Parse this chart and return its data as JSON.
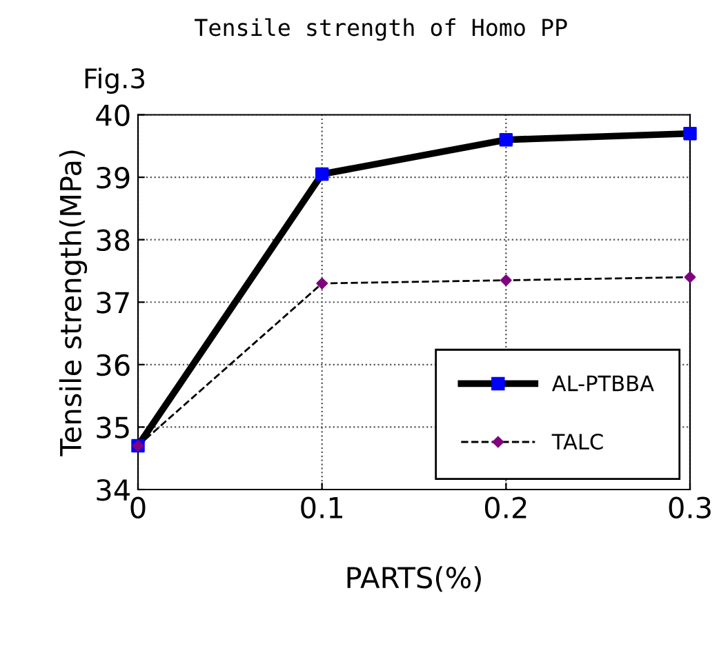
{
  "chart_data": {
    "type": "line",
    "title": "Tensile strength of Homo PP",
    "xlabel": "PARTS(%)",
    "ylabel": "Tensile strength(MPa)",
    "annotations": [
      "Fig.3"
    ],
    "x": [
      0,
      0.1,
      0.2,
      0.3
    ],
    "series": [
      {
        "name": "AL-PTBBA",
        "color": "#000000",
        "marker": "square",
        "colors": [
          "#0000ff",
          "#0000ff",
          "#0000ff",
          "#0000ff"
        ],
        "line_style": "solid",
        "values": [
          34.7,
          39.05,
          39.6,
          39.7
        ]
      },
      {
        "name": "TALC",
        "color": "#000000",
        "marker": "diamond",
        "colors": [
          "#800080",
          "#800080",
          "#800080",
          "#800080"
        ],
        "line_style": "dashed",
        "values": [
          34.7,
          37.3,
          37.35,
          37.4
        ]
      }
    ],
    "xlim": [
      0,
      0.3
    ],
    "xticks": [
      0,
      0.1,
      0.2,
      0.3
    ],
    "ylim": [
      34,
      40
    ],
    "yticks": [
      34,
      35,
      36,
      37,
      38,
      39,
      40
    ],
    "grid": true,
    "legend": "bottom right"
  }
}
